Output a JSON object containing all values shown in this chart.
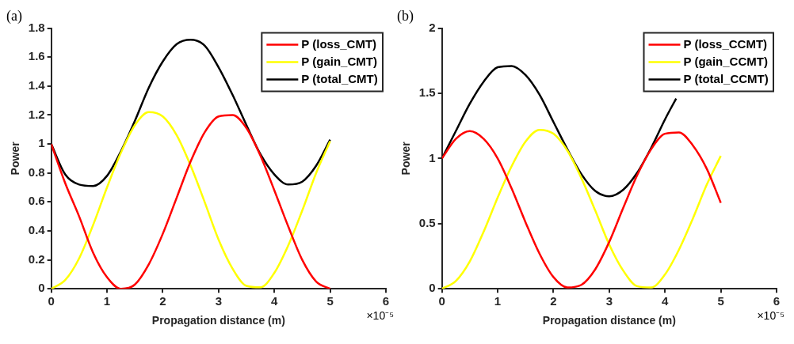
{
  "chart_data": [
    {
      "type": "line",
      "title": "(a)",
      "xlabel": "Propagation distance (m)",
      "ylabel": "Power",
      "x": [
        0,
        0.25,
        0.5,
        0.75,
        1,
        1.25,
        1.5,
        1.75,
        2,
        2.25,
        2.5,
        2.75,
        3,
        3.25,
        3.5,
        3.75,
        4,
        4.25,
        4.5,
        4.75,
        5
      ],
      "series": [
        {
          "name": "P (loss_CMT)",
          "color": "#ff0000",
          "values": [
            1.0,
            0.73,
            0.5,
            0.25,
            0.08,
            0.0,
            0.03,
            0.17,
            0.38,
            0.63,
            0.88,
            1.08,
            1.19,
            1.2,
            1.11,
            0.92,
            0.68,
            0.43,
            0.2,
            0.05,
            0.0
          ]
        },
        {
          "name": "P (gain_CMT)",
          "color": "#ffff00",
          "values": [
            0,
            0.06,
            0.21,
            0.44,
            0.7,
            0.94,
            1.13,
            1.22,
            1.19,
            1.06,
            0.85,
            0.6,
            0.34,
            0.14,
            0.02,
            0.01,
            0.11,
            0.3,
            0.54,
            0.8,
            1.02
          ]
        },
        {
          "name": "P (total_CMT)",
          "color": "#000000",
          "values": [
            1.0,
            0.79,
            0.72,
            0.71,
            0.78,
            0.95,
            1.16,
            1.39,
            1.57,
            1.69,
            1.72,
            1.68,
            1.53,
            1.34,
            1.13,
            0.93,
            0.79,
            0.72,
            0.74,
            0.85,
            1.03
          ]
        }
      ],
      "xlim": [
        0,
        6
      ],
      "xticks": [
        0,
        1,
        2,
        3,
        4,
        5,
        6
      ],
      "ylim": [
        0,
        1.8
      ],
      "yticks": [
        0,
        0.2,
        0.4,
        0.6,
        0.8,
        1,
        1.2,
        1.4,
        1.6,
        1.8
      ],
      "annotations": [
        "×10⁻⁵"
      ],
      "grid": false,
      "legend": "top right",
      "marker": "none",
      "line_style": "solid"
    },
    {
      "type": "line",
      "title": "(b)",
      "xlabel": "Propagation distance (m)",
      "ylabel": "Power",
      "x": [
        0,
        0.25,
        0.5,
        0.75,
        1,
        1.25,
        1.5,
        1.75,
        2,
        2.25,
        2.5,
        2.75,
        3,
        3.25,
        3.5,
        3.75,
        4,
        4.25,
        4.5,
        4.75,
        5
      ],
      "series": [
        {
          "name": "P (loss_CCMT)",
          "color": "#ff0000",
          "values": [
            1.0,
            1.15,
            1.21,
            1.15,
            1.0,
            0.77,
            0.51,
            0.27,
            0.09,
            0.01,
            0.03,
            0.15,
            0.36,
            0.62,
            0.87,
            1.07,
            1.19,
            1.2,
            1.1,
            0.92,
            0.66
          ]
        },
        {
          "name": "P (gain_CCMT)",
          "color": "#ffff00",
          "values": [
            0,
            0.06,
            0.21,
            0.44,
            0.7,
            0.94,
            1.13,
            1.22,
            1.19,
            1.06,
            0.85,
            0.6,
            0.34,
            0.14,
            0.02,
            0.01,
            0.11,
            0.3,
            0.54,
            0.8,
            1.02
          ]
        },
        {
          "name": "P (total_CCMT)",
          "color": "#000000",
          "x": [
            0,
            0.25,
            0.5,
            0.75,
            1,
            1.25,
            1.5,
            1.75,
            2,
            2.25,
            2.5,
            2.75,
            3,
            3.25,
            3.5,
            3.75,
            4,
            4.2
          ],
          "values": [
            1.0,
            1.21,
            1.42,
            1.59,
            1.7,
            1.71,
            1.64,
            1.49,
            1.28,
            1.07,
            0.88,
            0.75,
            0.71,
            0.76,
            0.89,
            1.08,
            1.3,
            1.46
          ]
        }
      ],
      "xlim": [
        0,
        6
      ],
      "xticks": [
        0,
        1,
        2,
        3,
        4,
        5,
        6
      ],
      "ylim": [
        0,
        2
      ],
      "yticks": [
        0,
        0.5,
        1,
        1.5,
        2
      ],
      "annotations": [
        "×10⁻⁵"
      ],
      "grid": false,
      "legend": "top right",
      "marker": "none",
      "line_style": "solid"
    }
  ]
}
